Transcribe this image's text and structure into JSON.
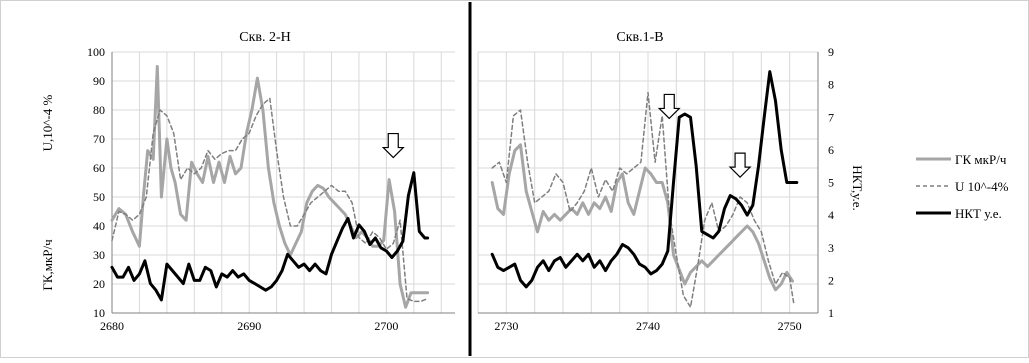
{
  "chart_data": [
    {
      "type": "line",
      "title": "Скв. 2-Н",
      "xlim": [
        2680,
        2705
      ],
      "x_ticks": [
        2680,
        2690,
        2700
      ],
      "y_left_label_top": "U,10^-4 %",
      "y_left_label_bottom": "ГК,мкР/ч",
      "ylim_left": [
        10,
        100
      ],
      "y_left_ticks": [
        10,
        20,
        30,
        40,
        50,
        60,
        70,
        80,
        90,
        100
      ],
      "ylim_right": [
        1,
        9
      ],
      "grid": true,
      "annotations": [
        {
          "type": "arrow-down",
          "x": 2700.5,
          "y_right": 6.5
        }
      ],
      "series": [
        {
          "name": "ГК мкР/ч",
          "axis": "left",
          "x": [
            2680.0,
            2680.5,
            2681.0,
            2681.5,
            2682.0,
            2682.3,
            2682.6,
            2683.0,
            2683.3,
            2683.6,
            2684.0,
            2684.3,
            2684.6,
            2685.0,
            2685.4,
            2685.8,
            2686.2,
            2686.6,
            2687.0,
            2687.4,
            2687.8,
            2688.2,
            2688.6,
            2689.0,
            2689.4,
            2689.8,
            2690.2,
            2690.6,
            2691.0,
            2691.4,
            2691.8,
            2692.2,
            2692.6,
            2693.0,
            2693.4,
            2693.8,
            2694.2,
            2694.6,
            2695.0,
            2695.4,
            2695.8,
            2696.2,
            2696.6,
            2697.0,
            2697.4,
            2697.8,
            2698.2,
            2698.6,
            2699.0,
            2699.4,
            2699.8,
            2700.2,
            2700.6,
            2701.0,
            2701.4,
            2701.8,
            2702.2,
            2702.6,
            2703.0
          ],
          "y": [
            42,
            46,
            44,
            38,
            33,
            51,
            66,
            63,
            95,
            50,
            70,
            60,
            55,
            44,
            42,
            62,
            58,
            55,
            64,
            55,
            62,
            55,
            64,
            58,
            60,
            72,
            80,
            91,
            80,
            60,
            48,
            40,
            34,
            30,
            34,
            38,
            48,
            52,
            54,
            53,
            50,
            48,
            46,
            44,
            40,
            36,
            38,
            36,
            33,
            33,
            35,
            56,
            45,
            20,
            12,
            17,
            17,
            17,
            17
          ]
        },
        {
          "name": "U 10^-4%",
          "axis": "left",
          "x": [
            2680.0,
            2680.5,
            2681.0,
            2681.5,
            2682.0,
            2682.5,
            2683.0,
            2683.5,
            2684.0,
            2684.5,
            2685.0,
            2685.5,
            2686.0,
            2686.5,
            2687.0,
            2687.5,
            2688.0,
            2688.5,
            2689.0,
            2689.5,
            2690.0,
            2690.5,
            2691.0,
            2691.5,
            2692.0,
            2692.5,
            2693.0,
            2693.5,
            2694.0,
            2694.5,
            2695.0,
            2695.5,
            2696.0,
            2696.5,
            2697.0,
            2697.5,
            2698.0,
            2698.5,
            2699.0,
            2699.5,
            2700.0,
            2700.5,
            2701.0,
            2701.5,
            2702.0,
            2702.5,
            2703.0
          ],
          "y": [
            35,
            45,
            44,
            42,
            44,
            50,
            72,
            80,
            78,
            72,
            56,
            60,
            58,
            60,
            66,
            63,
            65,
            66,
            66,
            70,
            72,
            78,
            82,
            84,
            66,
            50,
            40,
            40,
            44,
            48,
            50,
            52,
            54,
            52,
            52,
            48,
            36,
            34,
            38,
            36,
            32,
            34,
            42,
            15,
            14,
            14,
            15
          ]
        },
        {
          "name": "НКТ у.е.",
          "axis": "right",
          "x": [
            2680.0,
            2680.4,
            2680.8,
            2681.2,
            2681.6,
            2682.0,
            2682.4,
            2682.8,
            2683.2,
            2683.6,
            2684.0,
            2684.4,
            2684.8,
            2685.2,
            2685.6,
            2686.0,
            2686.4,
            2686.8,
            2687.2,
            2687.6,
            2688.0,
            2688.4,
            2688.8,
            2689.2,
            2689.6,
            2690.0,
            2690.4,
            2690.8,
            2691.2,
            2691.6,
            2692.0,
            2692.4,
            2692.8,
            2693.2,
            2693.6,
            2694.0,
            2694.4,
            2694.8,
            2695.2,
            2695.6,
            2696.0,
            2696.4,
            2696.8,
            2697.2,
            2697.6,
            2698.0,
            2698.4,
            2698.8,
            2699.2,
            2699.6,
            2700.0,
            2700.4,
            2700.8,
            2701.2,
            2701.6,
            2702.0,
            2702.4,
            2702.8,
            2703.0
          ],
          "y": [
            2.4,
            2.1,
            2.1,
            2.4,
            2.0,
            2.2,
            2.6,
            1.9,
            1.7,
            1.4,
            2.5,
            2.3,
            2.1,
            1.9,
            2.5,
            2.0,
            2.0,
            2.4,
            2.3,
            1.8,
            2.2,
            2.1,
            2.3,
            2.1,
            2.2,
            2.0,
            1.9,
            1.8,
            1.7,
            1.8,
            2.0,
            2.3,
            2.8,
            2.6,
            2.4,
            2.5,
            2.3,
            2.5,
            2.3,
            2.2,
            2.8,
            3.2,
            3.6,
            3.9,
            3.3,
            3.7,
            3.5,
            3.1,
            3.3,
            3.0,
            2.9,
            2.7,
            2.9,
            3.2,
            4.6,
            5.3,
            3.5,
            3.3,
            3.3
          ]
        }
      ]
    },
    {
      "type": "line",
      "title": "Скв.1-В",
      "xlim": [
        2728,
        2752
      ],
      "x_ticks": [
        2730,
        2740,
        2750
      ],
      "y_right_label": "НКТ,у.е.",
      "ylim_left": [
        10,
        100
      ],
      "ylim_right": [
        1,
        9
      ],
      "y_right_ticks": [
        1,
        2,
        3,
        4,
        5,
        6,
        7,
        8,
        9
      ],
      "grid": true,
      "annotations": [
        {
          "type": "arrow-down",
          "x": 2741.5,
          "y_right": 7.7
        },
        {
          "type": "arrow-down",
          "x": 2746.5,
          "y_right": 5.9
        }
      ],
      "series": [
        {
          "name": "ГК мкР/ч",
          "axis": "left",
          "x": [
            2729.0,
            2729.4,
            2729.8,
            2730.2,
            2730.6,
            2731.0,
            2731.4,
            2731.8,
            2732.2,
            2732.6,
            2733.0,
            2733.4,
            2733.8,
            2734.2,
            2734.6,
            2735.0,
            2735.4,
            2735.8,
            2736.2,
            2736.6,
            2737.0,
            2737.4,
            2737.8,
            2738.2,
            2738.6,
            2739.0,
            2739.4,
            2739.8,
            2740.2,
            2740.6,
            2741.0,
            2741.4,
            2741.8,
            2742.2,
            2742.6,
            2743.0,
            2743.4,
            2743.8,
            2744.2,
            2744.6,
            2745.0,
            2745.4,
            2745.8,
            2746.2,
            2746.6,
            2747.0,
            2747.4,
            2747.8,
            2748.2,
            2748.6,
            2749.0,
            2749.4,
            2749.8,
            2750.2
          ],
          "y": [
            55,
            46,
            44,
            58,
            66,
            68,
            52,
            45,
            38,
            45,
            42,
            44,
            42,
            44,
            46,
            44,
            48,
            44,
            48,
            46,
            50,
            45,
            55,
            58,
            48,
            44,
            52,
            60,
            58,
            55,
            55,
            48,
            30,
            25,
            20,
            24,
            26,
            28,
            26,
            28,
            30,
            32,
            34,
            36,
            38,
            40,
            38,
            34,
            28,
            22,
            18,
            20,
            24,
            21
          ]
        },
        {
          "name": "U 10^-4%",
          "axis": "left",
          "x": [
            2729.0,
            2729.5,
            2730.0,
            2730.5,
            2731.0,
            2731.5,
            2732.0,
            2732.5,
            2733.0,
            2733.5,
            2734.0,
            2734.5,
            2735.0,
            2735.5,
            2736.0,
            2736.5,
            2737.0,
            2737.5,
            2738.0,
            2738.5,
            2739.0,
            2739.5,
            2740.0,
            2740.5,
            2741.0,
            2741.5,
            2742.0,
            2742.5,
            2743.0,
            2743.5,
            2744.0,
            2744.5,
            2745.0,
            2745.5,
            2746.0,
            2746.5,
            2747.0,
            2747.5,
            2748.0,
            2748.5,
            2749.0,
            2749.5,
            2750.0,
            2750.3
          ],
          "y": [
            60,
            62,
            55,
            78,
            80,
            62,
            48,
            50,
            52,
            58,
            55,
            45,
            48,
            52,
            60,
            50,
            56,
            52,
            60,
            58,
            60,
            62,
            86,
            62,
            78,
            45,
            30,
            16,
            12,
            26,
            42,
            48,
            38,
            40,
            44,
            50,
            48,
            42,
            38,
            28,
            20,
            24,
            22,
            13
          ]
        },
        {
          "name": "НКТ у.е.",
          "axis": "right",
          "x": [
            2729.0,
            2729.4,
            2729.8,
            2730.2,
            2730.6,
            2731.0,
            2731.4,
            2731.8,
            2732.2,
            2732.6,
            2733.0,
            2733.4,
            2733.8,
            2734.2,
            2734.6,
            2735.0,
            2735.4,
            2735.8,
            2736.2,
            2736.6,
            2737.0,
            2737.4,
            2737.8,
            2738.2,
            2738.6,
            2739.0,
            2739.4,
            2739.8,
            2740.2,
            2740.6,
            2741.0,
            2741.4,
            2741.8,
            2742.2,
            2742.6,
            2743.0,
            2743.4,
            2743.8,
            2744.2,
            2744.6,
            2745.0,
            2745.4,
            2745.8,
            2746.2,
            2746.6,
            2747.0,
            2747.4,
            2747.8,
            2748.2,
            2748.6,
            2749.0,
            2749.4,
            2749.8,
            2750.2,
            2750.5
          ],
          "y": [
            2.8,
            2.4,
            2.3,
            2.4,
            2.5,
            2.0,
            1.8,
            2.0,
            2.4,
            2.6,
            2.3,
            2.6,
            2.7,
            2.4,
            2.6,
            2.8,
            2.6,
            2.8,
            2.4,
            2.6,
            2.3,
            2.6,
            2.8,
            3.1,
            3.0,
            2.8,
            2.5,
            2.4,
            2.2,
            2.3,
            2.5,
            2.9,
            5.0,
            7.0,
            7.1,
            7.0,
            5.5,
            3.5,
            3.4,
            3.3,
            3.5,
            4.2,
            4.6,
            4.5,
            4.3,
            4.0,
            4.3,
            5.5,
            7.0,
            8.4,
            7.5,
            6.0,
            5.0,
            5.0,
            5.0
          ]
        }
      ]
    }
  ],
  "legend": {
    "placement": "right",
    "items": [
      {
        "label": "ГК мкР/ч",
        "color": "#a6a6a6",
        "dash": "solid"
      },
      {
        "label": "U 10^-4%",
        "color": "#7f7f7f",
        "dash": "dashed"
      },
      {
        "label": "НКТ у.е.",
        "color": "#000000",
        "dash": "solid"
      }
    ]
  },
  "colors": {
    "gk": "#a6a6a6",
    "u": "#7f7f7f",
    "nkt": "#000000",
    "grid": "#d9d9d9",
    "axis": "#808080"
  }
}
